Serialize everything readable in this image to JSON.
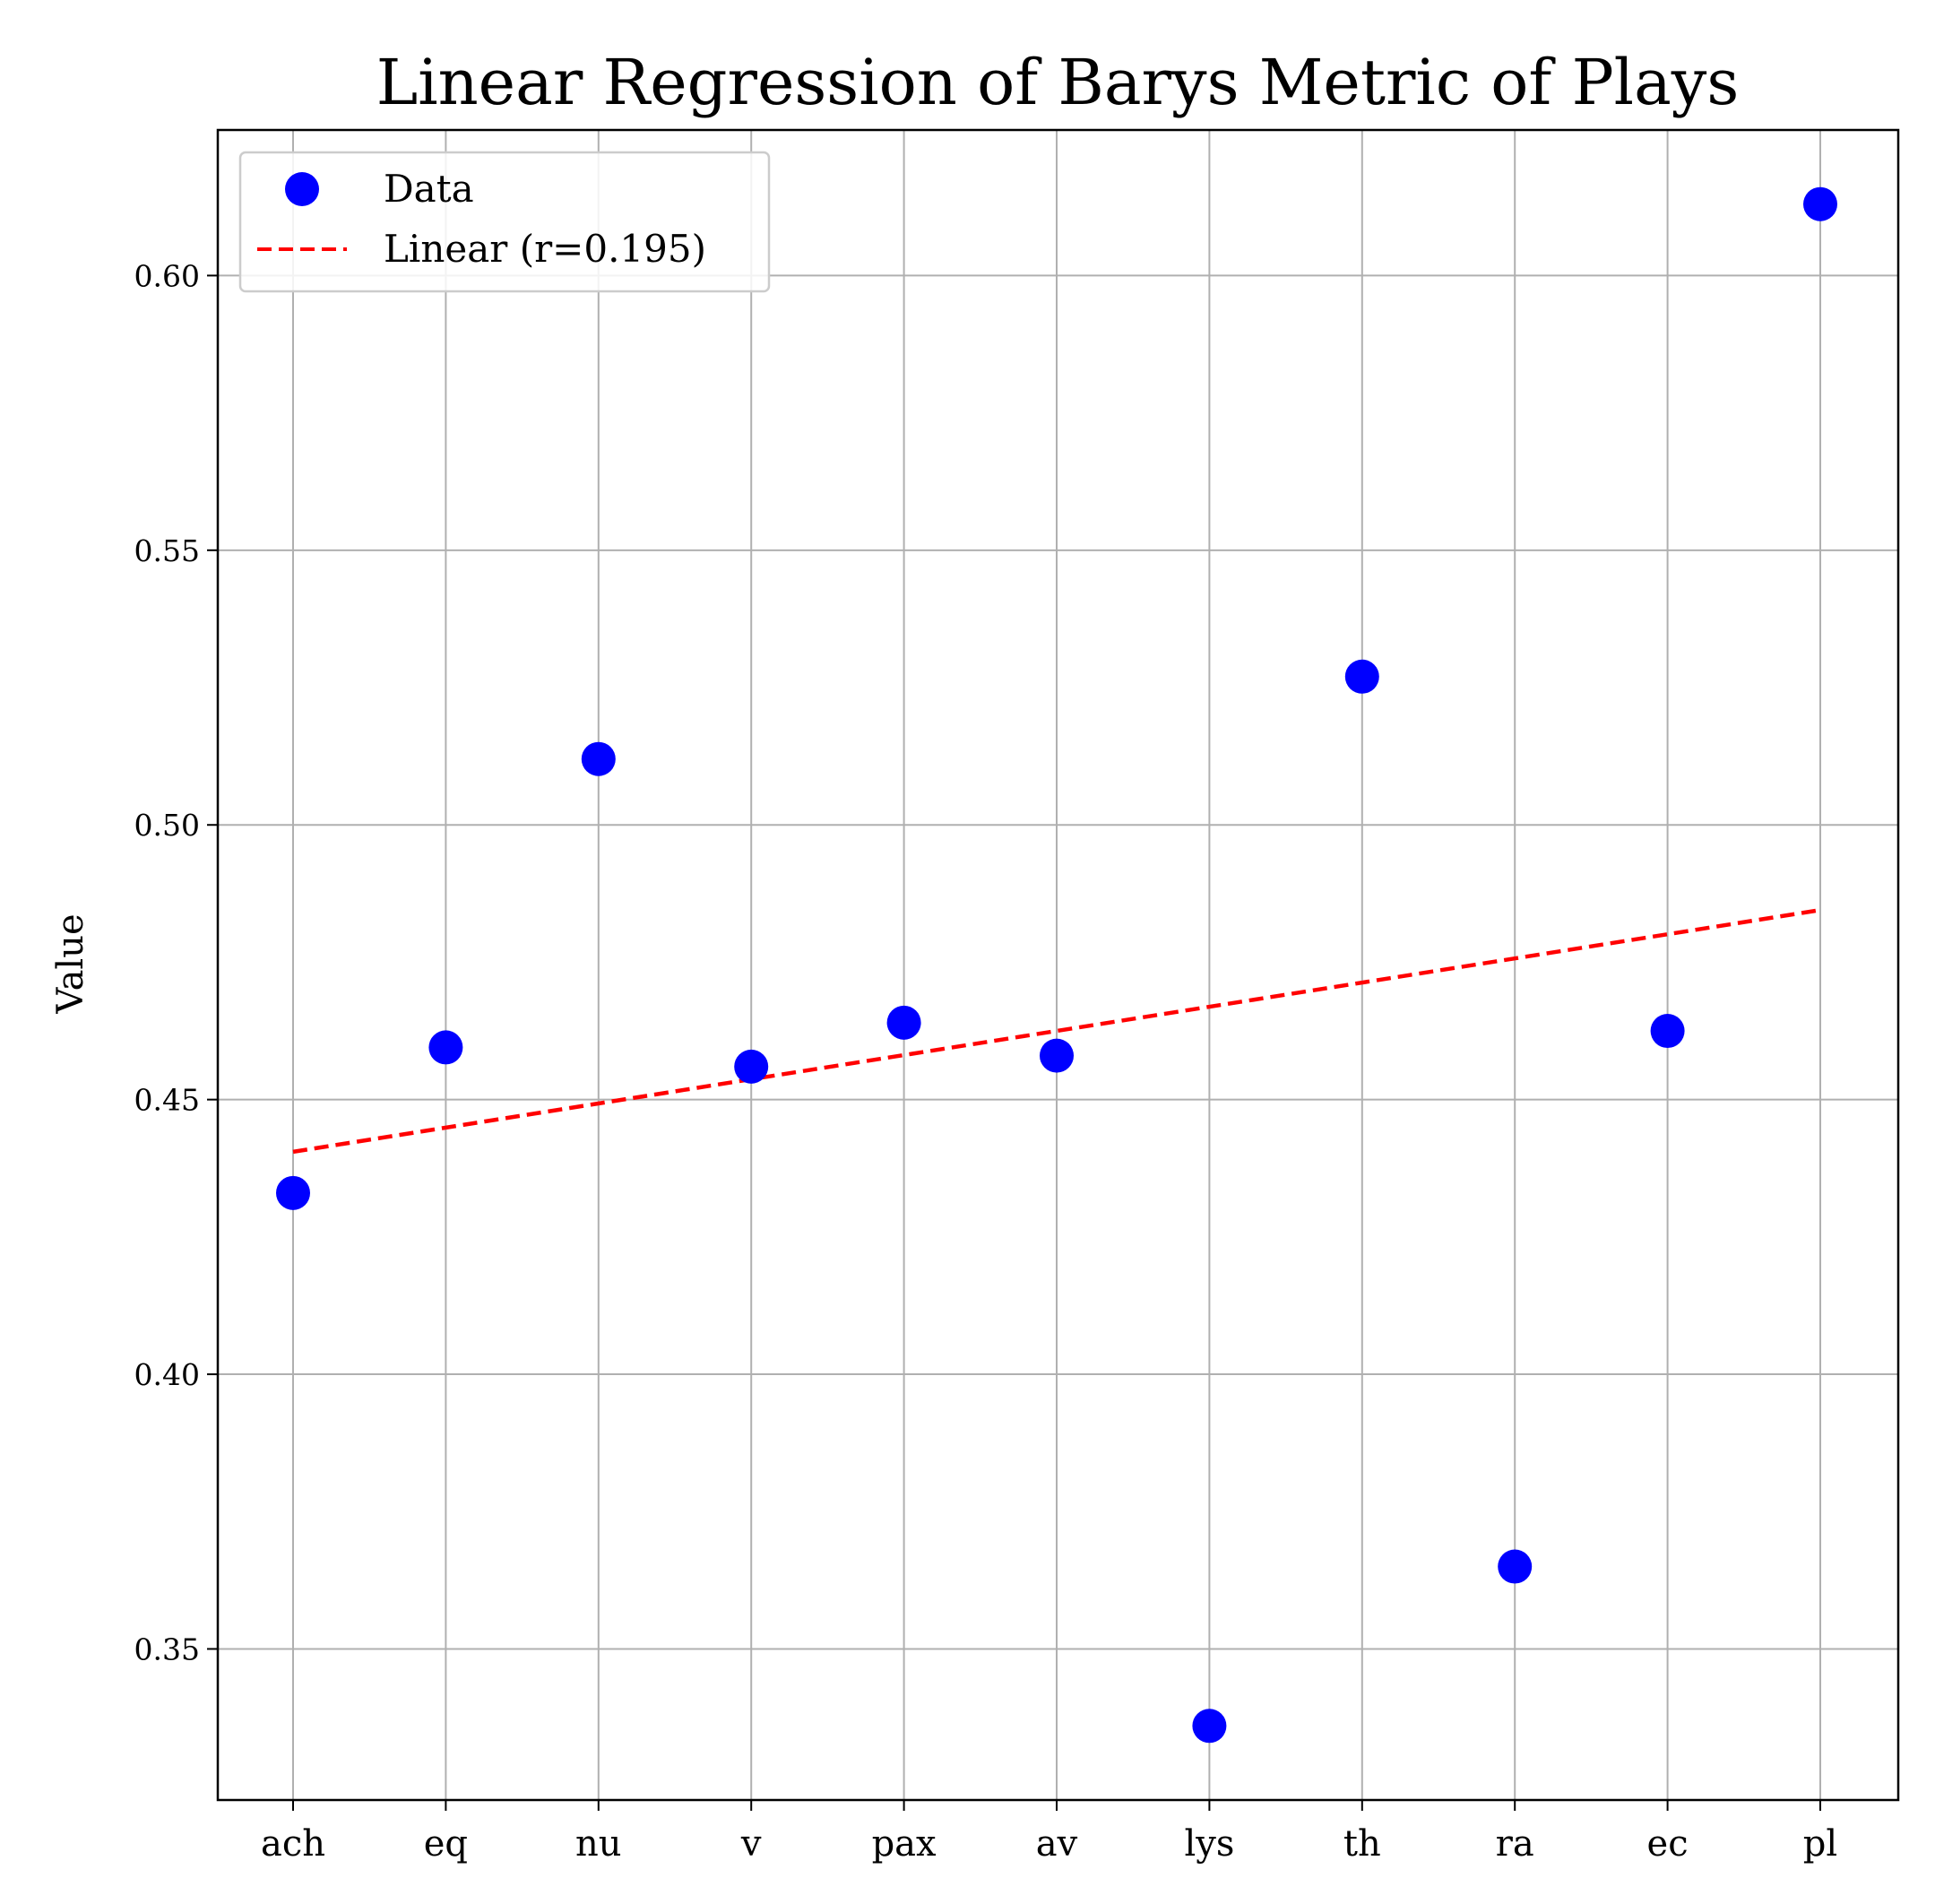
{
  "chart_data": {
    "type": "scatter",
    "title": "Linear Regression of Barys Metric of Plays",
    "xlabel": "",
    "ylabel": "Value",
    "categories": [
      "ach",
      "eq",
      "nu",
      "v",
      "pax",
      "av",
      "lys",
      "th",
      "ra",
      "ec",
      "pl"
    ],
    "series": [
      {
        "name": "Data",
        "kind": "scatter",
        "color": "#0000ff",
        "values": [
          0.433,
          0.4595,
          0.512,
          0.456,
          0.464,
          0.458,
          0.336,
          0.527,
          0.365,
          0.4625,
          0.613
        ]
      },
      {
        "name": "Linear (r=0.195)",
        "kind": "line",
        "style": "dashed",
        "color": "#ff0000",
        "start": 0.4405,
        "end": 0.4845
      }
    ],
    "ylim": [
      0.3225,
      0.6265
    ],
    "yticks": [
      "0.35",
      "0.40",
      "0.45",
      "0.50",
      "0.55",
      "0.60"
    ],
    "grid": true,
    "legend_position": "top-left"
  }
}
